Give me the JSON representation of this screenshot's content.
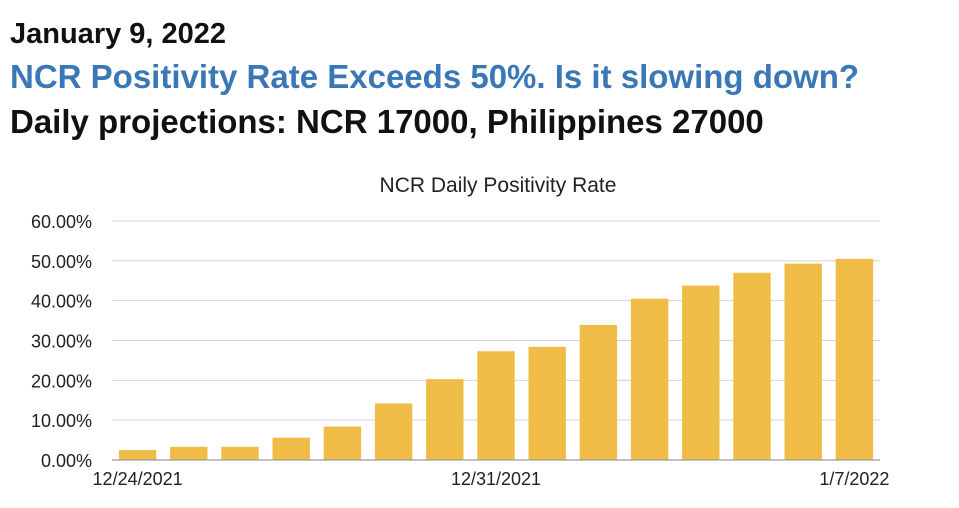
{
  "header": {
    "date": "January 9, 2022",
    "headline": "NCR Positivity Rate Exceeds 50%. Is it slowing down?",
    "subheadline": "Daily projections: NCR 17000, Philippines 27000"
  },
  "colors": {
    "bar": "#eebc47",
    "headline": "#3a77b6",
    "text": "#111111",
    "grid": "#d4d4d4",
    "axis": "#9a9a9a"
  },
  "chart_data": {
    "type": "bar",
    "title": "NCR Daily Positivity Rate",
    "xlabel": "",
    "ylabel": "",
    "categories": [
      "12/24/2021",
      "12/25/2021",
      "12/26/2021",
      "12/27/2021",
      "12/28/2021",
      "12/29/2021",
      "12/30/2021",
      "12/31/2021",
      "1/1/2022",
      "1/2/2022",
      "1/3/2022",
      "1/4/2022",
      "1/5/2022",
      "1/6/2022",
      "1/7/2022"
    ],
    "x_tick_labels": [
      "12/24/2021",
      "12/31/2021",
      "1/7/2022"
    ],
    "values": [
      2.5,
      3.3,
      3.3,
      5.6,
      8.4,
      14.2,
      20.3,
      27.3,
      28.4,
      33.9,
      40.5,
      43.8,
      47.0,
      49.3,
      50.5
    ],
    "y_ticks": [
      "0.00%",
      "10.00%",
      "20.00%",
      "30.00%",
      "40.00%",
      "50.00%",
      "60.00%"
    ],
    "ylim": [
      0,
      60
    ],
    "grid": true,
    "legend": "none"
  }
}
